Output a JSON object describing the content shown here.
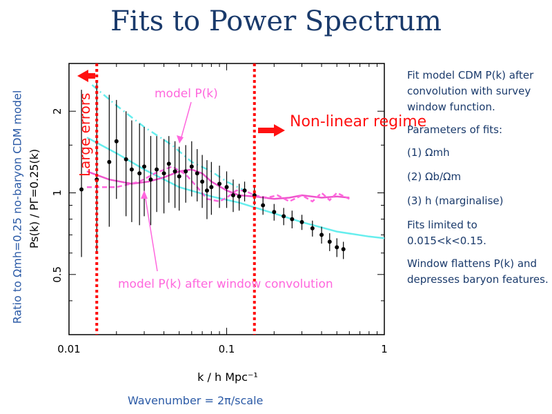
{
  "title": "Fits to Power Spectrum",
  "side_label": "Ratio to Ωmh=0.25 no-baryon CDM model",
  "wavenumber_label": "Wavenumber = 2π/scale",
  "notes": {
    "p1": "Fit model CDM P(k) after convolution with survey window function.",
    "p2": "Parameters of fits:",
    "p3": "(1) Ωmh",
    "p4": "(2) Ωb/Ωm",
    "p5": "(3) h (marginalise)",
    "p6": "Fits limited to 0.015<k<0.15.",
    "p7": "Window flattens P(k) and depresses baryon features."
  },
  "chart_data": {
    "type": "line",
    "xscale": "log",
    "yscale": "log",
    "xlim": [
      0.01,
      1
    ],
    "ylim": [
      0.3,
      3
    ],
    "xticks": [
      0.01,
      0.1,
      1
    ],
    "xtick_labels": [
      "0.01",
      "0.1",
      "1"
    ],
    "yticks": [
      0.5,
      1,
      2
    ],
    "ytick_labels": [
      "0.5",
      "1",
      "2"
    ],
    "xlabel": "k / h Mpc⁻¹",
    "ylabel": "Ps(k) / PΓ=0.25(k)",
    "vlines": [
      0.015,
      0.15
    ],
    "annotations": {
      "large_errors": "Large errors",
      "non_linear": "Non-linear regime",
      "model_pk": "model P(k)",
      "model_conv": "model P(k) after window convolution"
    },
    "colors": {
      "data": "#000000",
      "model": "#ff66dd",
      "model_conv": "#ee55cc",
      "cyan": "#66eeee",
      "marker": "#ff0000"
    },
    "data_points": {
      "k": [
        0.012,
        0.015,
        0.018,
        0.02,
        0.023,
        0.025,
        0.028,
        0.03,
        0.033,
        0.036,
        0.04,
        0.043,
        0.047,
        0.05,
        0.055,
        0.06,
        0.065,
        0.07,
        0.075,
        0.08,
        0.09,
        0.1,
        0.11,
        0.12,
        0.13,
        0.15,
        0.17,
        0.2,
        0.23,
        0.26,
        0.3,
        0.35,
        0.4,
        0.45,
        0.5,
        0.55
      ],
      "ratio": [
        1.03,
        1.12,
        1.3,
        1.55,
        1.33,
        1.22,
        1.18,
        1.25,
        1.12,
        1.22,
        1.18,
        1.28,
        1.2,
        1.15,
        1.2,
        1.25,
        1.18,
        1.1,
        1.02,
        1.05,
        1.08,
        1.05,
        0.98,
        0.97,
        1.02,
        0.98,
        0.9,
        0.85,
        0.82,
        0.8,
        0.78,
        0.74,
        0.7,
        0.66,
        0.63,
        0.62
      ],
      "err_hi": [
        2.4,
        2.6,
        2.3,
        2.2,
        2.0,
        1.85,
        1.8,
        1.75,
        1.62,
        1.62,
        1.58,
        1.62,
        1.55,
        1.48,
        1.5,
        1.55,
        1.45,
        1.38,
        1.32,
        1.3,
        1.26,
        1.2,
        1.12,
        1.08,
        1.1,
        1.06,
        0.97,
        0.91,
        0.88,
        0.86,
        0.83,
        0.79,
        0.75,
        0.71,
        0.68,
        0.66
      ],
      "err_lo": [
        0.58,
        0.6,
        0.75,
        0.95,
        0.82,
        0.78,
        0.76,
        0.82,
        0.76,
        0.85,
        0.84,
        0.92,
        0.88,
        0.86,
        0.92,
        0.97,
        0.93,
        0.88,
        0.8,
        0.83,
        0.88,
        0.88,
        0.85,
        0.86,
        0.93,
        0.9,
        0.83,
        0.79,
        0.76,
        0.74,
        0.73,
        0.69,
        0.65,
        0.61,
        0.58,
        0.57
      ]
    },
    "model_pk": {
      "k": [
        0.013,
        0.02,
        0.028,
        0.035,
        0.045,
        0.055,
        0.065,
        0.075,
        0.09,
        0.1,
        0.115,
        0.13,
        0.15,
        0.18,
        0.21,
        0.25,
        0.3,
        0.35,
        0.4,
        0.45,
        0.5,
        0.6
      ],
      "ratio": [
        1.05,
        1.05,
        1.1,
        1.18,
        1.25,
        1.17,
        1.05,
        0.95,
        0.93,
        0.96,
        1.02,
        1.02,
        0.98,
        0.96,
        0.98,
        0.93,
        0.98,
        0.93,
        1.0,
        0.94,
        1.0,
        0.95
      ]
    },
    "model_conv": {
      "k": [
        0.013,
        0.018,
        0.025,
        0.032,
        0.04,
        0.05,
        0.06,
        0.07,
        0.08,
        0.1,
        0.12,
        0.15,
        0.2,
        0.25,
        0.3,
        0.4,
        0.5,
        0.6
      ],
      "ratio": [
        1.2,
        1.12,
        1.08,
        1.1,
        1.14,
        1.2,
        1.22,
        1.18,
        1.1,
        1.02,
        0.98,
        0.97,
        0.95,
        0.96,
        0.98,
        0.96,
        0.97,
        0.96
      ]
    },
    "cyan_dashdot": {
      "k": [
        0.014,
        0.02,
        0.03,
        0.045,
        0.06,
        0.08,
        0.1,
        0.13
      ],
      "ratio": [
        2.5,
        2.1,
        1.75,
        1.5,
        1.3,
        1.2,
        1.1,
        1.02
      ]
    },
    "cyan_solid": {
      "k": [
        0.013,
        0.02,
        0.03,
        0.05,
        0.08,
        0.12,
        0.2,
        0.3,
        0.5,
        0.8,
        1.0
      ],
      "ratio": [
        1.6,
        1.4,
        1.22,
        1.05,
        0.97,
        0.92,
        0.84,
        0.78,
        0.72,
        0.69,
        0.68
      ]
    }
  }
}
